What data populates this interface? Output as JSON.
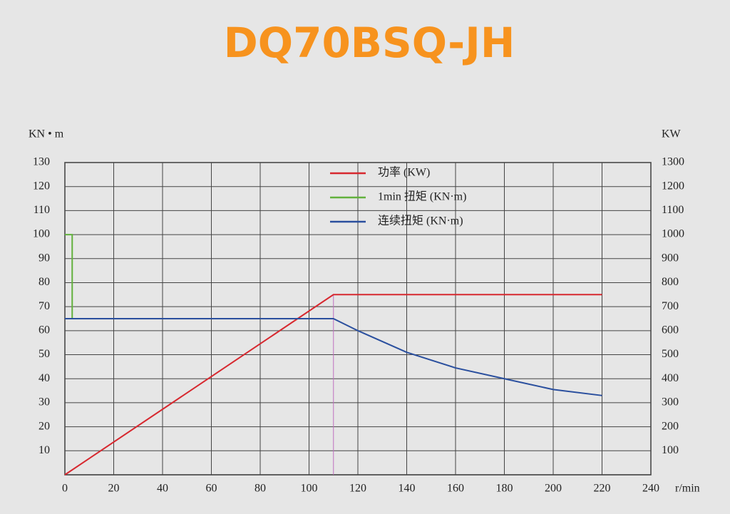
{
  "chart_data": {
    "type": "line",
    "title": "DQ70BSQ-JH",
    "y_label": "KN • m",
    "y2_label": "KW",
    "x_label": "r/min",
    "xlim": [
      0,
      240
    ],
    "xticks": [
      0,
      20,
      40,
      60,
      80,
      100,
      120,
      140,
      160,
      180,
      200,
      220,
      240
    ],
    "ylim": [
      0,
      130
    ],
    "yticks": [
      10,
      20,
      30,
      40,
      50,
      60,
      70,
      80,
      90,
      100,
      110,
      120,
      130
    ],
    "y2lim": [
      0,
      1300
    ],
    "y2ticks": [
      100,
      200,
      300,
      400,
      500,
      600,
      700,
      800,
      900,
      1000,
      1100,
      1200,
      1300
    ],
    "grid": true,
    "legend": "top",
    "series": [
      {
        "name": "功率 (KW)",
        "color": "#d7282f",
        "axis": "y2",
        "x": [
          0,
          110,
          220
        ],
        "values": [
          0,
          750,
          750
        ]
      },
      {
        "name": "1min 扭矩 (KN·m)",
        "color": "#62b13d",
        "x": [
          0,
          3,
          3
        ],
        "values": [
          100,
          100,
          65
        ]
      },
      {
        "name": "连续扭矩 (KN·m)",
        "color": "#2a4f9e",
        "x": [
          0,
          110,
          120,
          140,
          160,
          180,
          200,
          220
        ],
        "values": [
          65,
          65,
          60,
          51,
          44.5,
          40,
          35.5,
          33
        ]
      }
    ]
  }
}
